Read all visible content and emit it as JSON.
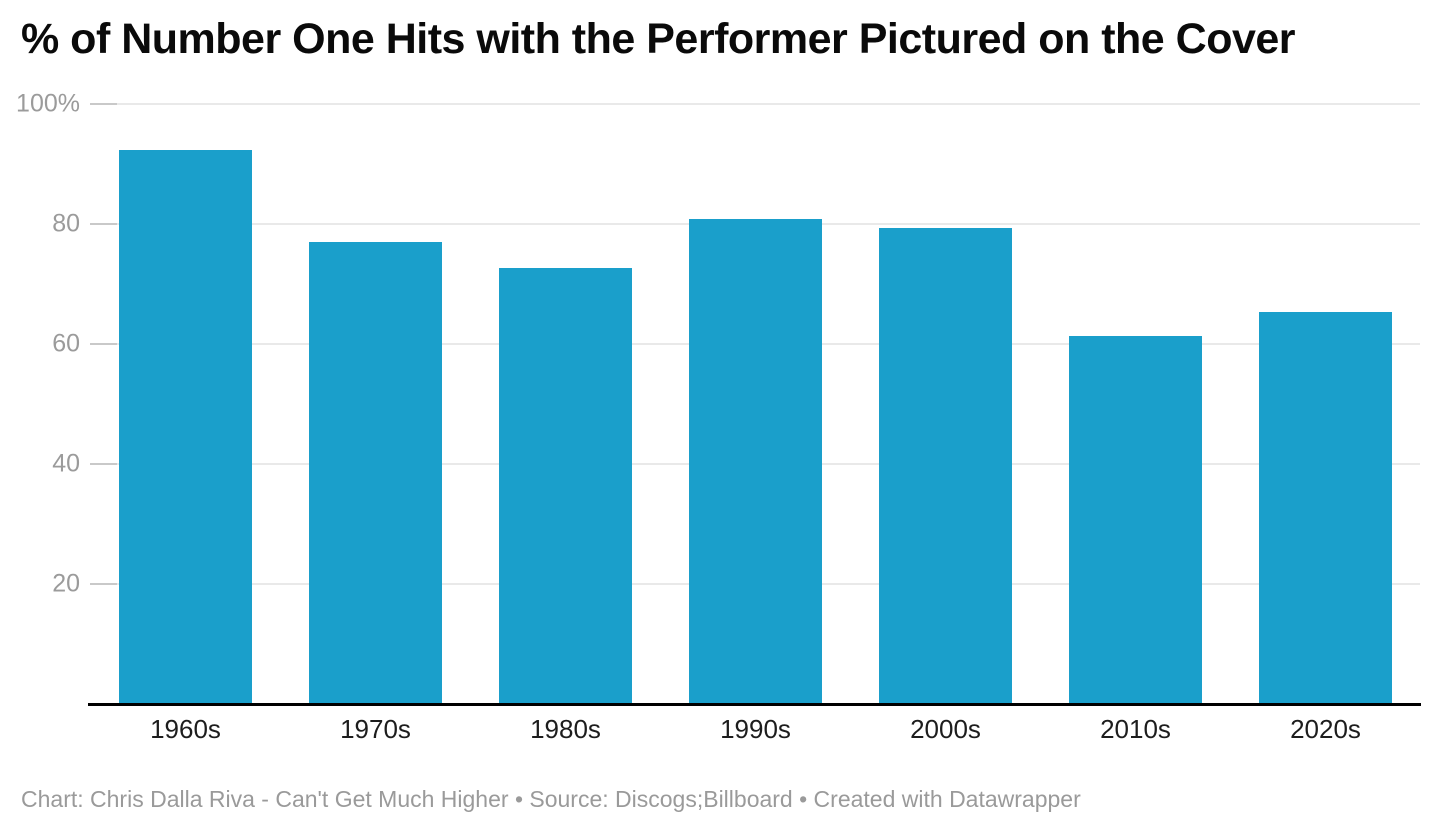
{
  "header": {
    "title": "% of Number One Hits with the Performer Pictured on the Cover"
  },
  "footer": {
    "text": "Chart: Chris Dalla Riva - Can't Get Much Higher • Source: Discogs;Billboard • Created with Datawrapper"
  },
  "colors": {
    "bar": "#1A9FCB",
    "gridline": "#e9e9e9",
    "tick_stub": "#c9c9c9",
    "axis_line": "#000000",
    "y_label": "#9b9b9b",
    "x_label": "#1d1d1d",
    "title": "#0a0a0a",
    "footer": "#9a9a9a",
    "background": "#ffffff"
  },
  "chart_data": {
    "type": "bar",
    "title": "% of Number One Hits with the Performer Pictured on the Cover",
    "categories": [
      "1960s",
      "1970s",
      "1980s",
      "1990s",
      "2000s",
      "2010s",
      "2020s"
    ],
    "values": [
      92.2,
      76.8,
      72.5,
      80.7,
      79.2,
      61.1,
      65.1
    ],
    "xlabel": "",
    "ylabel": "",
    "ylim": [
      0,
      100
    ],
    "yticks": [
      {
        "value": 20,
        "label": "20"
      },
      {
        "value": 40,
        "label": "40"
      },
      {
        "value": 60,
        "label": "60"
      },
      {
        "value": 80,
        "label": "80"
      },
      {
        "value": 100,
        "label": "100%"
      }
    ],
    "grid": "horizontal",
    "legend": "none",
    "source_note": "Chart: Chris Dalla Riva - Can't Get Much Higher • Source: Discogs;Billboard • Created with Datawrapper"
  }
}
